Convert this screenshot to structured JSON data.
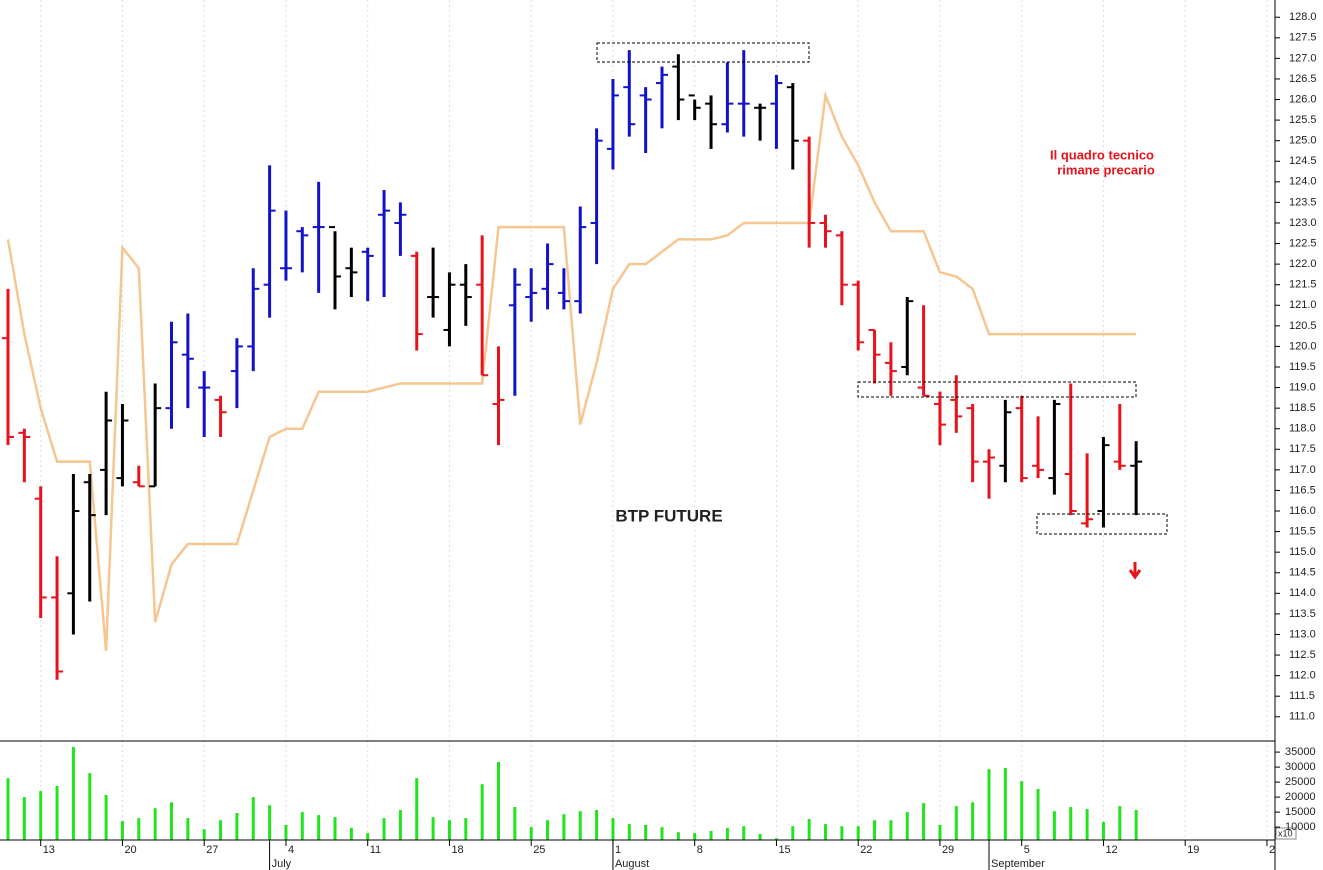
{
  "chart_data": {
    "type": "ohlc",
    "title": "BTP FUTURE",
    "annotation": [
      "Il quadro tecnico",
      "rimane precario"
    ],
    "categories": [
      null,
      null,
      "13",
      null,
      null,
      null,
      null,
      "20",
      null,
      null,
      null,
      null,
      "27",
      null,
      null,
      null,
      null,
      "4",
      null,
      null,
      null,
      null,
      "11",
      null,
      null,
      null,
      null,
      "18",
      null,
      null,
      null,
      null,
      "25",
      null,
      null,
      null,
      null,
      "1",
      null,
      null,
      null,
      null,
      "8",
      null,
      null,
      null,
      null,
      "15",
      null,
      null,
      null,
      null,
      "22",
      null,
      null,
      null,
      null,
      "29",
      null,
      null,
      null,
      null,
      "5",
      null,
      null,
      null,
      null,
      "12",
      null,
      null,
      null,
      null,
      "19",
      null,
      null,
      null,
      null,
      "2"
    ],
    "months": [
      null,
      null,
      null,
      null,
      null,
      null,
      null,
      null,
      null,
      null,
      null,
      null,
      null,
      null,
      null,
      null,
      "July",
      null,
      null,
      null,
      null,
      null,
      null,
      null,
      null,
      null,
      null,
      null,
      null,
      null,
      null,
      null,
      null,
      null,
      null,
      null,
      null,
      "August",
      null,
      null,
      null,
      null,
      null,
      null,
      null,
      null,
      null,
      null,
      null,
      null,
      null,
      null,
      null,
      null,
      null,
      null,
      null,
      null,
      null,
      null,
      "September",
      null,
      null,
      null,
      null,
      null,
      null,
      null,
      null,
      null,
      null,
      null,
      null,
      null,
      null,
      null,
      null,
      null
    ],
    "open": [
      120.2,
      117.9,
      116.3,
      113.9,
      114.0,
      116.7,
      117.0,
      116.8,
      116.7,
      116.6,
      118.5,
      119.8,
      119.0,
      118.7,
      119.4,
      120.0,
      121.5,
      121.9,
      122.8,
      122.9,
      122.9,
      121.9,
      122.3,
      123.2,
      123.0,
      122.2,
      121.2,
      120.4,
      121.5,
      121.5,
      118.6,
      121.0,
      121.2,
      121.4,
      121.3,
      121.1,
      123.0,
      124.8,
      126.3,
      126.1,
      126.4,
      126.8,
      126.1,
      125.9,
      125.4,
      125.9,
      125.8,
      125.9,
      126.3,
      125.0,
      123.0,
      122.7,
      121.5,
      120.4,
      119.6,
      119.5,
      119.0,
      118.6,
      118.7,
      118.5,
      117.2,
      117.1,
      118.5,
      117.1,
      116.8,
      116.9,
      115.7,
      116.0,
      117.2,
      117.1,
      null,
      null,
      null,
      null,
      null,
      null,
      null,
      null
    ],
    "high": [
      121.4,
      118.0,
      116.6,
      114.9,
      116.9,
      116.9,
      118.9,
      118.6,
      117.1,
      119.1,
      120.6,
      120.8,
      119.4,
      118.8,
      120.2,
      121.9,
      124.4,
      123.3,
      122.9,
      124.0,
      122.8,
      122.4,
      122.4,
      123.8,
      123.5,
      122.3,
      122.4,
      121.8,
      122.0,
      122.7,
      120.0,
      121.9,
      121.9,
      122.5,
      121.9,
      123.4,
      125.3,
      126.5,
      127.2,
      126.3,
      126.8,
      127.1,
      126.0,
      126.1,
      126.9,
      127.2,
      125.9,
      126.6,
      126.4,
      125.1,
      123.2,
      122.8,
      121.6,
      120.4,
      120.1,
      121.2,
      121.0,
      118.9,
      119.3,
      118.6,
      117.5,
      118.7,
      118.8,
      118.3,
      118.7,
      119.1,
      117.4,
      117.8,
      118.6,
      117.7,
      null,
      null,
      null,
      null,
      null,
      null,
      null,
      null
    ],
    "low": [
      117.6,
      116.7,
      113.4,
      111.9,
      113.0,
      113.8,
      115.9,
      116.6,
      116.6,
      116.6,
      118.0,
      118.5,
      117.8,
      117.8,
      118.5,
      119.4,
      120.7,
      121.6,
      121.8,
      121.3,
      120.9,
      121.2,
      121.1,
      121.2,
      122.2,
      119.9,
      120.7,
      120.0,
      120.5,
      119.3,
      117.6,
      118.8,
      120.6,
      120.9,
      120.9,
      120.8,
      122.0,
      124.3,
      125.1,
      124.7,
      125.3,
      125.5,
      125.5,
      124.8,
      125.2,
      125.1,
      125.0,
      124.8,
      124.3,
      122.4,
      122.4,
      121.0,
      119.9,
      119.1,
      118.8,
      119.3,
      118.8,
      117.6,
      117.9,
      116.7,
      116.3,
      116.7,
      116.7,
      116.8,
      116.4,
      115.9,
      115.6,
      115.6,
      117.0,
      115.9,
      null,
      null,
      null,
      null,
      null,
      null,
      null,
      null
    ],
    "close": [
      117.8,
      117.8,
      113.9,
      112.1,
      116.0,
      115.9,
      118.2,
      118.2,
      116.6,
      118.5,
      120.1,
      119.7,
      119.0,
      118.4,
      120.0,
      121.4,
      123.3,
      121.9,
      122.7,
      122.9,
      121.7,
      121.8,
      122.2,
      123.3,
      123.2,
      120.3,
      121.2,
      121.5,
      121.2,
      119.3,
      118.7,
      121.5,
      121.3,
      122.0,
      121.1,
      122.9,
      125.0,
      126.1,
      125.4,
      126.0,
      126.6,
      126.0,
      125.8,
      125.4,
      125.9,
      125.9,
      125.8,
      126.4,
      125.0,
      123.0,
      122.8,
      121.5,
      120.1,
      119.8,
      119.4,
      121.1,
      118.8,
      118.1,
      118.3,
      117.2,
      117.3,
      118.4,
      116.8,
      117.0,
      118.6,
      116.0,
      115.8,
      117.6,
      117.1,
      117.2,
      null,
      null,
      null,
      null,
      null,
      null,
      null,
      null
    ],
    "bar_colors": [
      "#e8121b",
      "#e8121b",
      "#e8121b",
      "#e8121b",
      "#000000",
      "#000000",
      "#000000",
      "#000000",
      "#e8121b",
      "#000000",
      "#1212c8",
      "#1212c8",
      "#1212c8",
      "#e8121b",
      "#1212c8",
      "#1212c8",
      "#1212c8",
      "#1212c8",
      "#1212c8",
      "#1212c8",
      "#000000",
      "#000000",
      "#1212c8",
      "#1212c8",
      "#1212c8",
      "#e8121b",
      "#000000",
      "#000000",
      "#000000",
      "#e8121b",
      "#e8121b",
      "#1212c8",
      "#1212c8",
      "#1212c8",
      "#1212c8",
      "#1212c8",
      "#1212c8",
      "#1212c8",
      "#1212c8",
      "#1212c8",
      "#1212c8",
      "#000000",
      "#000000",
      "#000000",
      "#1212c8",
      "#1212c8",
      "#000000",
      "#1212c8",
      "#000000",
      "#e8121b",
      "#e8121b",
      "#e8121b",
      "#e8121b",
      "#e8121b",
      "#e8121b",
      "#000000",
      "#e8121b",
      "#e8121b",
      "#e8121b",
      "#e8121b",
      "#e8121b",
      "#000000",
      "#e8121b",
      "#e8121b",
      "#000000",
      "#e8121b",
      "#e8121b",
      "#000000",
      "#e8121b",
      "#000000",
      null,
      null,
      null,
      null,
      null,
      null,
      null,
      null
    ],
    "overlay": {
      "color": "#f5c690",
      "values": [
        122.6,
        120.3,
        118.5,
        117.2,
        117.2,
        117.2,
        112.6,
        122.4,
        121.9,
        113.3,
        114.7,
        115.2,
        115.2,
        115.2,
        115.2,
        116.5,
        117.8,
        118.0,
        118.0,
        118.9,
        118.9,
        118.9,
        118.9,
        119.0,
        119.1,
        119.1,
        119.1,
        119.1,
        119.1,
        119.1,
        122.9,
        122.9,
        122.9,
        122.9,
        122.9,
        118.1,
        119.6,
        121.4,
        122.0,
        122.0,
        122.3,
        122.6,
        122.6,
        122.6,
        122.7,
        123.0,
        123.0,
        123.0,
        123.0,
        123.0,
        126.1,
        125.1,
        124.4,
        123.5,
        122.8,
        122.8,
        122.8,
        121.8,
        121.7,
        121.4,
        120.3,
        120.3,
        120.3,
        120.3,
        120.3,
        120.3,
        120.3,
        120.3,
        120.3,
        120.3,
        null,
        null,
        null,
        null,
        null,
        null,
        null,
        null
      ]
    },
    "ylim": [
      110.8,
      128.2
    ],
    "yticks": [
      {
        "value": 111,
        "label": "111.0"
      },
      {
        "value": 111.5,
        "label": "111.5"
      },
      {
        "value": 112,
        "label": "112.0"
      },
      {
        "value": 112.5,
        "label": "112.5"
      },
      {
        "value": 113,
        "label": "113.0"
      },
      {
        "value": 113.5,
        "label": "113.5"
      },
      {
        "value": 114,
        "label": "114.0"
      },
      {
        "value": 114.5,
        "label": "114.5"
      },
      {
        "value": 115,
        "label": "115.0"
      },
      {
        "value": 115.5,
        "label": "115.5"
      },
      {
        "value": 116,
        "label": "116.0"
      },
      {
        "value": 116.5,
        "label": "116.5"
      },
      {
        "value": 117,
        "label": "117.0"
      },
      {
        "value": 117.5,
        "label": "117.5"
      },
      {
        "value": 118,
        "label": "118.0"
      },
      {
        "value": 118.5,
        "label": "118.5"
      },
      {
        "value": 119,
        "label": "119.0"
      },
      {
        "value": 119.5,
        "label": "119.5"
      },
      {
        "value": 120,
        "label": "120.0"
      },
      {
        "value": 120.5,
        "label": "120.5"
      },
      {
        "value": 121,
        "label": "121.0"
      },
      {
        "value": 121.5,
        "label": "121.5"
      },
      {
        "value": 122,
        "label": "122.0"
      },
      {
        "value": 122.5,
        "label": "122.5"
      },
      {
        "value": 123,
        "label": "123.0"
      },
      {
        "value": 123.5,
        "label": "123.5"
      },
      {
        "value": 124,
        "label": "124.0"
      },
      {
        "value": 124.5,
        "label": "124.5"
      },
      {
        "value": 125,
        "label": "125.0"
      },
      {
        "value": 125.5,
        "label": "125.5"
      },
      {
        "value": 126,
        "label": "126.0"
      },
      {
        "value": 126.5,
        "label": "126.5"
      },
      {
        "value": 127,
        "label": "127.0"
      },
      {
        "value": 127.5,
        "label": "127.5"
      },
      {
        "value": 128,
        "label": "128.0"
      }
    ],
    "grid": true,
    "volume": {
      "color": "#22e41e",
      "note": "x10",
      "values": [
        26300,
        20000,
        22000,
        23700,
        36700,
        28000,
        20700,
        12000,
        13000,
        16300,
        18300,
        13000,
        9300,
        12300,
        14700,
        20000,
        17300,
        10700,
        15000,
        14000,
        13300,
        9700,
        8000,
        13000,
        15700,
        26300,
        13300,
        12300,
        13000,
        24300,
        31700,
        16700,
        10000,
        12300,
        14300,
        15300,
        15700,
        13000,
        11000,
        10700,
        10000,
        8300,
        8000,
        8700,
        9700,
        10300,
        7700,
        6300,
        10300,
        12700,
        11000,
        10300,
        10300,
        12300,
        12300,
        15000,
        18000,
        10700,
        17000,
        18300,
        29300,
        29700,
        25300,
        22700,
        15300,
        16700,
        16000,
        11700,
        17000,
        15700,
        null,
        null,
        null,
        null,
        null,
        null,
        null,
        null
      ],
      "ylim": [
        5700,
        38700
      ],
      "yticks": [
        10000,
        15000,
        20000,
        25000,
        30000,
        35000
      ]
    }
  }
}
